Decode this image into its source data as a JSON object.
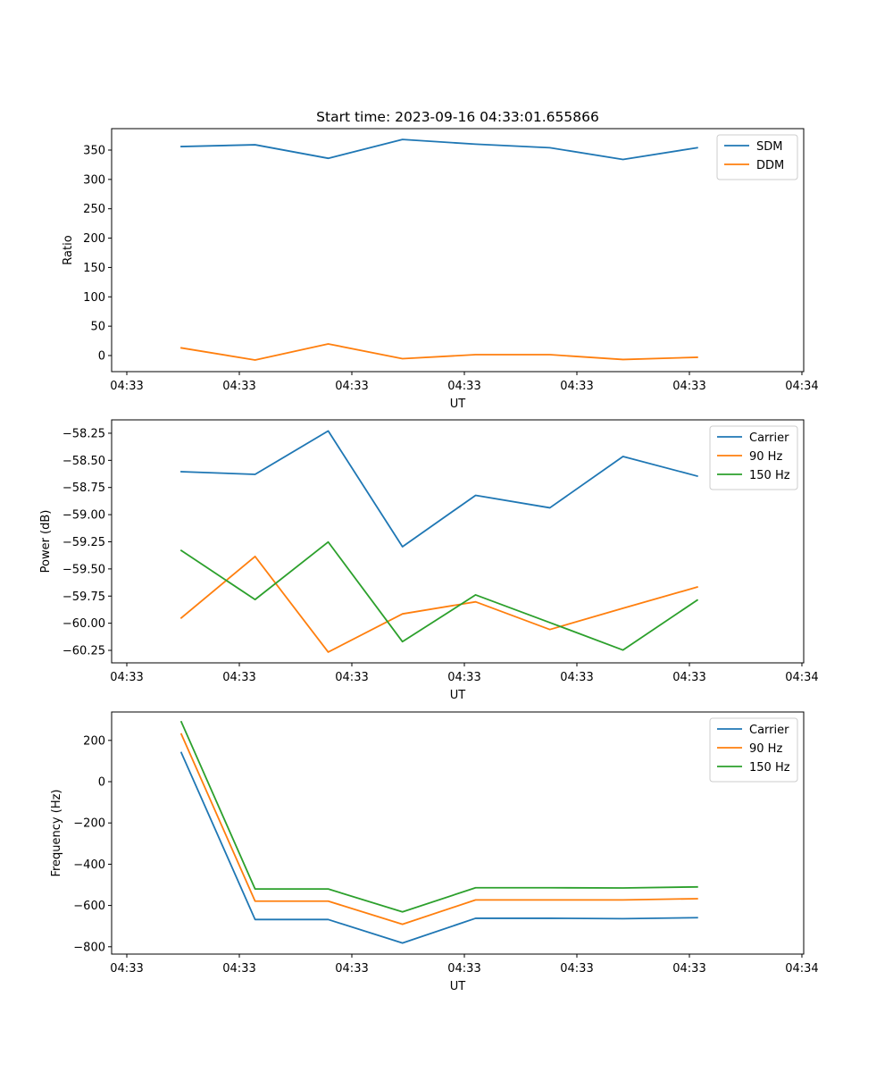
{
  "chart_data": [
    {
      "type": "line",
      "title": "Start time: 2023-09-16 04:33:01.655866",
      "xlabel": "UT",
      "ylabel": "Ratio",
      "x_unit": "seconds after 04:33:00",
      "x": [
        4.84,
        11.4,
        17.9,
        24.5,
        31.0,
        37.6,
        44.1,
        50.7
      ],
      "xlim": [
        -1.35,
        60.16
      ],
      "xticks": [
        0,
        10,
        20,
        30,
        40,
        50,
        60
      ],
      "xtick_labels": [
        "04:33",
        "04:33",
        "04:33",
        "04:33",
        "04:33",
        "04:33",
        "04:34"
      ],
      "ylim": [
        -27.4,
        386.5
      ],
      "yticks": [
        0,
        50,
        100,
        150,
        200,
        250,
        300,
        350
      ],
      "ytick_labels": [
        "0",
        "50",
        "100",
        "150",
        "200",
        "250",
        "300",
        "350"
      ],
      "legend_position": "top-right",
      "grid": false,
      "series": [
        {
          "name": "SDM",
          "color": "#1f77b4",
          "values": [
            356,
            359,
            336,
            368,
            360,
            354,
            334,
            354
          ]
        },
        {
          "name": "DDM",
          "color": "#ff7f0e",
          "values": [
            13,
            -7.6,
            19.8,
            -5.3,
            1.5,
            1.5,
            -6.8,
            -3
          ]
        }
      ]
    },
    {
      "type": "line",
      "title": "",
      "xlabel": "UT",
      "ylabel": "Power (dB)",
      "x_unit": "seconds after 04:33:00",
      "x": [
        4.84,
        11.4,
        17.9,
        24.5,
        31.0,
        37.6,
        44.1,
        50.7
      ],
      "xlim": [
        -1.35,
        60.16
      ],
      "xticks": [
        0,
        10,
        20,
        30,
        40,
        50,
        60
      ],
      "xtick_labels": [
        "04:33",
        "04:33",
        "04:33",
        "04:33",
        "04:33",
        "04:33",
        "04:34"
      ],
      "ylim": [
        -60.365,
        -58.127
      ],
      "yticks": [
        -60.25,
        -60.0,
        -59.75,
        -59.5,
        -59.25,
        -59.0,
        -58.75,
        -58.5,
        -58.25
      ],
      "ytick_labels": [
        "−60.25",
        "−60.00",
        "−59.75",
        "−59.50",
        "−59.25",
        "−59.00",
        "−58.75",
        "−58.50",
        "−58.25"
      ],
      "legend_position": "top-right",
      "grid": false,
      "series": [
        {
          "name": "Carrier",
          "color": "#1f77b4",
          "values": [
            -58.604,
            -58.629,
            -58.229,
            -59.295,
            -58.822,
            -58.937,
            -58.464,
            -58.645
          ]
        },
        {
          "name": "90 Hz",
          "color": "#ff7f0e",
          "values": [
            -59.951,
            -59.385,
            -60.266,
            -59.914,
            -59.803,
            -60.058,
            -59.862,
            -59.667
          ]
        },
        {
          "name": "150 Hz",
          "color": "#2ca02c",
          "values": [
            -59.33,
            -59.782,
            -59.252,
            -60.17,
            -59.739,
            -59.994,
            -60.247,
            -59.787
          ]
        }
      ]
    },
    {
      "type": "line",
      "title": "",
      "xlabel": "UT",
      "ylabel": "Frequency (Hz)",
      "x_unit": "seconds after 04:33:00",
      "x": [
        4.84,
        11.4,
        17.9,
        24.5,
        31.0,
        37.6,
        44.1,
        50.7
      ],
      "xlim": [
        -1.35,
        60.16
      ],
      "xticks": [
        0,
        10,
        20,
        30,
        40,
        50,
        60
      ],
      "xtick_labels": [
        "04:33",
        "04:33",
        "04:33",
        "04:33",
        "04:33",
        "04:33",
        "04:34"
      ],
      "ylim": [
        -835.5,
        337.7
      ],
      "yticks": [
        -800,
        -600,
        -400,
        -200,
        0,
        200
      ],
      "ytick_labels": [
        "−800",
        "−600",
        "−400",
        "−200",
        "0",
        "200"
      ],
      "legend_position": "top-right",
      "grid": false,
      "series": [
        {
          "name": "Carrier",
          "color": "#1f77b4",
          "values": [
            141,
            -668,
            -668,
            -782,
            -662,
            -662,
            -664,
            -659
          ]
        },
        {
          "name": "90 Hz",
          "color": "#ff7f0e",
          "values": [
            231,
            -579,
            -579,
            -691,
            -573,
            -573,
            -573,
            -567
          ]
        },
        {
          "name": "150 Hz",
          "color": "#2ca02c",
          "values": [
            290,
            -520,
            -520,
            -631,
            -514,
            -514,
            -515,
            -510
          ]
        }
      ]
    }
  ]
}
